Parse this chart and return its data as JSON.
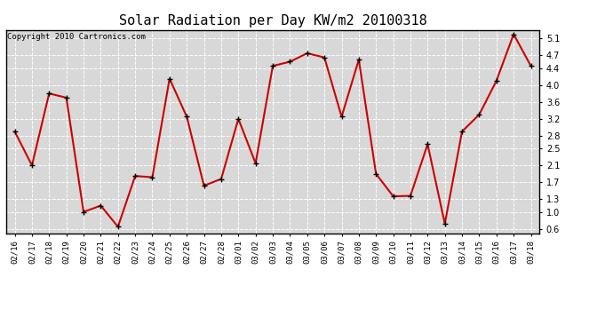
{
  "title": "Solar Radiation per Day KW/m2 20100318",
  "copyright": "Copyright 2010 Cartronics.com",
  "dates": [
    "02/16",
    "02/17",
    "02/18",
    "02/19",
    "02/20",
    "02/21",
    "02/22",
    "02/23",
    "02/24",
    "02/25",
    "02/26",
    "02/27",
    "02/28",
    "03/01",
    "03/02",
    "03/03",
    "03/04",
    "03/05",
    "03/06",
    "03/07",
    "03/08",
    "03/09",
    "03/10",
    "03/11",
    "03/12",
    "03/13",
    "03/14",
    "03/15",
    "03/16",
    "03/17",
    "03/18"
  ],
  "values": [
    2.9,
    2.1,
    3.8,
    3.7,
    1.0,
    1.15,
    0.65,
    1.85,
    1.82,
    4.15,
    3.25,
    1.62,
    1.78,
    3.2,
    2.15,
    4.45,
    4.55,
    4.75,
    4.65,
    3.25,
    4.6,
    1.9,
    1.37,
    1.38,
    2.6,
    0.72,
    2.9,
    3.3,
    4.1,
    5.2,
    4.45
  ],
  "line_color": "#cc0000",
  "marker_color": "#000000",
  "bg_color": "#ffffff",
  "plot_bg_color": "#d8d8d8",
  "grid_color": "#ffffff",
  "yticks": [
    0.6,
    1.0,
    1.3,
    1.7,
    2.1,
    2.5,
    2.8,
    3.2,
    3.6,
    4.0,
    4.4,
    4.7,
    5.1
  ],
  "ylim": [
    0.5,
    5.3
  ],
  "title_fontsize": 11,
  "copyright_fontsize": 6.5,
  "tick_fontsize": 6.5,
  "ytick_fontsize": 7.0
}
